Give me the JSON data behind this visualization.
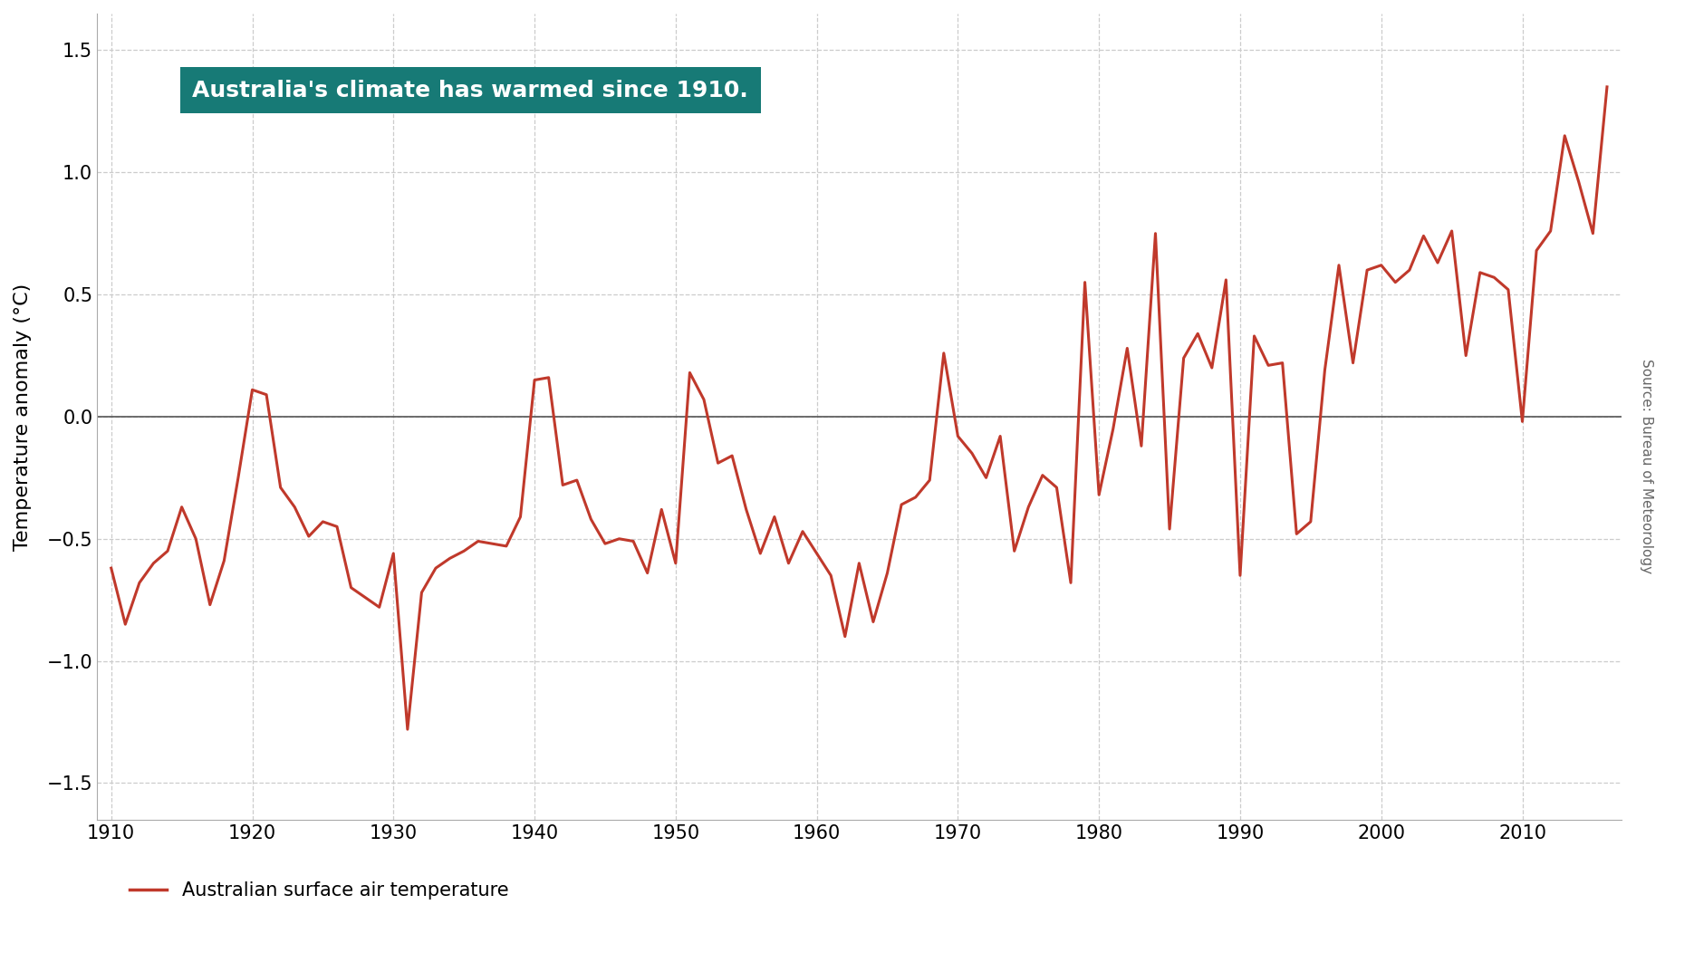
{
  "years": [
    1910,
    1911,
    1912,
    1913,
    1914,
    1915,
    1916,
    1917,
    1918,
    1919,
    1920,
    1921,
    1922,
    1923,
    1924,
    1925,
    1926,
    1927,
    1928,
    1929,
    1930,
    1931,
    1932,
    1933,
    1934,
    1935,
    1936,
    1937,
    1938,
    1939,
    1940,
    1941,
    1942,
    1943,
    1944,
    1945,
    1946,
    1947,
    1948,
    1949,
    1950,
    1951,
    1952,
    1953,
    1954,
    1955,
    1956,
    1957,
    1958,
    1959,
    1960,
    1961,
    1962,
    1963,
    1964,
    1965,
    1966,
    1967,
    1968,
    1969,
    1970,
    1971,
    1972,
    1973,
    1974,
    1975,
    1976,
    1977,
    1978,
    1979,
    1980,
    1981,
    1982,
    1983,
    1984,
    1985,
    1986,
    1987,
    1988,
    1989,
    1990,
    1991,
    1992,
    1993,
    1994,
    1995,
    1996,
    1997,
    1998,
    1999,
    2000,
    2001,
    2002,
    2003,
    2004,
    2005,
    2006,
    2007,
    2008,
    2009,
    2010,
    2011,
    2012,
    2013,
    2014,
    2015,
    2016
  ],
  "values": [
    -0.62,
    -0.85,
    -0.68,
    -0.6,
    -0.55,
    -0.37,
    -0.5,
    -0.77,
    -0.59,
    -0.25,
    0.11,
    0.09,
    -0.29,
    -0.37,
    -0.49,
    -0.43,
    -0.45,
    -0.7,
    -0.74,
    -0.78,
    -0.56,
    -1.28,
    -0.72,
    -0.62,
    -0.58,
    -0.55,
    -0.51,
    -0.52,
    -0.53,
    -0.41,
    0.15,
    0.16,
    -0.28,
    -0.26,
    -0.42,
    -0.52,
    -0.5,
    -0.51,
    -0.64,
    -0.38,
    -0.6,
    0.18,
    0.07,
    -0.19,
    -0.16,
    -0.38,
    -0.56,
    -0.41,
    -0.6,
    -0.47,
    -0.56,
    -0.65,
    -0.9,
    -0.6,
    -0.84,
    -0.64,
    -0.36,
    -0.33,
    -0.26,
    0.26,
    -0.08,
    -0.15,
    -0.25,
    -0.08,
    -0.55,
    -0.37,
    -0.24,
    -0.29,
    -0.68,
    0.55,
    -0.32,
    -0.05,
    0.28,
    -0.12,
    0.75,
    -0.46,
    0.24,
    0.34,
    0.2,
    0.56,
    -0.65,
    0.33,
    0.21,
    0.22,
    -0.48,
    -0.43,
    0.19,
    0.62,
    0.22,
    0.6,
    0.62,
    0.55,
    0.6,
    0.74,
    0.63,
    0.76,
    0.25,
    0.59,
    0.57,
    0.52,
    -0.02,
    0.68,
    0.76,
    1.15,
    0.96,
    0.75,
    1.35
  ],
  "line_color": "#c0392b",
  "line_width": 2.2,
  "ylabel": "Temperature anomaly (°C)",
  "ylabel_fontsize": 16,
  "title_box_text": "Australia's climate has warmed since 1910.",
  "title_box_color": "#177a76",
  "title_box_text_color": "#ffffff",
  "title_fontsize": 18,
  "legend_label": "Australian surface air temperature",
  "legend_fontsize": 15,
  "source_text": "Source: Bureau of Meteorology",
  "source_fontsize": 11,
  "xlim": [
    1909,
    2017
  ],
  "ylim": [
    -1.65,
    1.65
  ],
  "xticks": [
    1910,
    1920,
    1930,
    1940,
    1950,
    1960,
    1970,
    1980,
    1990,
    2000,
    2010
  ],
  "yticks": [
    -1.5,
    -1.0,
    -0.5,
    0.0,
    0.5,
    1.0,
    1.5
  ],
  "background_color": "#ffffff",
  "grid_color": "#cccccc",
  "zero_line_color": "#555555",
  "tick_label_fontsize": 15
}
